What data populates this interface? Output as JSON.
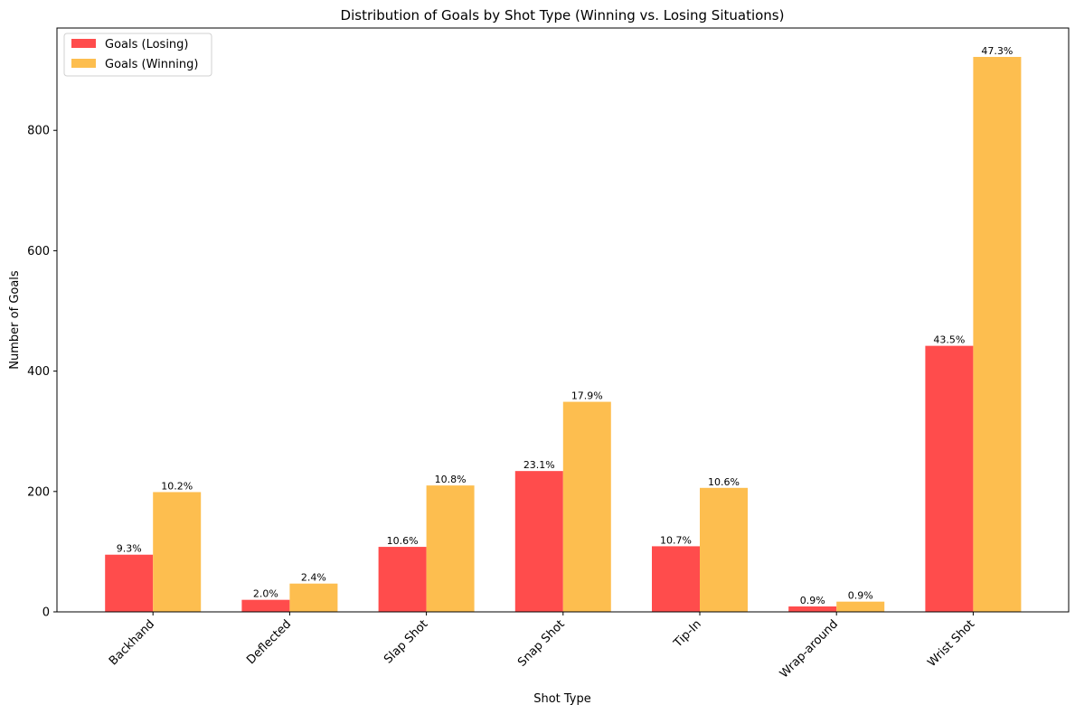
{
  "chart_data": {
    "type": "bar",
    "title": "Distribution of Goals by Shot Type (Winning vs. Losing Situations)",
    "xlabel": "Shot Type",
    "ylabel": "Number of Goals",
    "ylim": [
      0,
      970
    ],
    "yticks": [
      0,
      200,
      400,
      600,
      800
    ],
    "grid": false,
    "legend_position": "top-left",
    "categories": [
      "Backhand",
      "Deflected",
      "Slap Shot",
      "Snap Shot",
      "Tip-In",
      "Wrap-around",
      "Wrist Shot"
    ],
    "series": [
      {
        "name": "Goals (Losing)",
        "color": "#ff4c4c",
        "values": [
          95,
          20,
          108,
          234,
          109,
          9,
          442
        ],
        "labels": [
          "9.3%",
          "2.0%",
          "10.6%",
          "23.1%",
          "10.7%",
          "0.9%",
          "43.5%"
        ]
      },
      {
        "name": "Goals (Winning)",
        "color": "#fdbe4f",
        "values": [
          199,
          47,
          210,
          349,
          206,
          17,
          922
        ],
        "labels": [
          "10.2%",
          "2.4%",
          "10.8%",
          "17.9%",
          "10.6%",
          "0.9%",
          "47.3%"
        ]
      }
    ]
  }
}
